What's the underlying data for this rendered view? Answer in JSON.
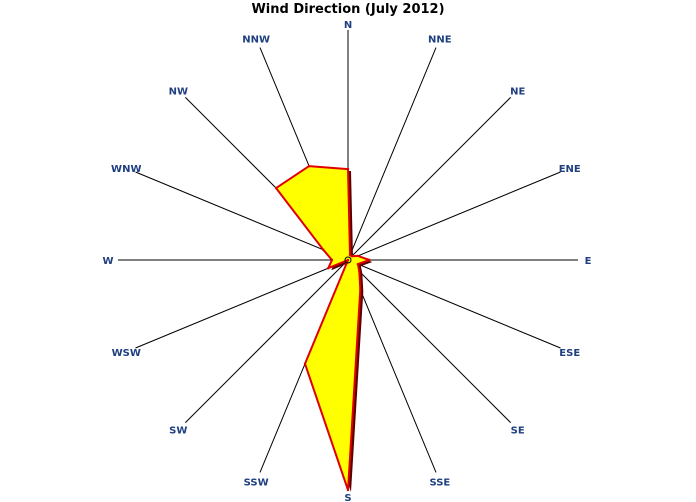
{
  "chart_data": {
    "type": "radar",
    "title": "Wind Direction (July 2012)",
    "categories": [
      "N",
      "NNE",
      "NE",
      "ENE",
      "E",
      "ESE",
      "SE",
      "SSE",
      "S",
      "SSW",
      "SW",
      "WSW",
      "W",
      "WNW",
      "NW",
      "NNW"
    ],
    "series": [
      {
        "values": [
          0.34,
          0.02,
          0.02,
          0.04,
          0.08,
          0.04,
          0.06,
          0.12,
          0.86,
          0.42,
          0.0,
          0.08,
          0.06,
          0.1,
          0.38,
          0.38
        ]
      }
    ],
    "rmax": 0.86,
    "grid": true,
    "legend": "none"
  },
  "colors": {
    "fill": "#ffff00",
    "stroke": "#e00000",
    "shadow": "#5a0000",
    "axis": "#000000",
    "label": "#1f3f80"
  }
}
